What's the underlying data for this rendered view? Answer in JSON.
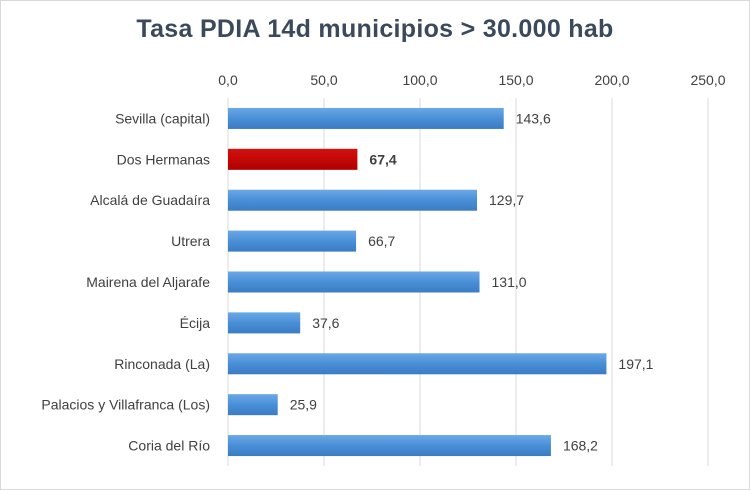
{
  "chart_data": {
    "type": "bar",
    "orientation": "horizontal",
    "title": "Tasa  PDIA  14d municipios  > 30.000 hab",
    "xlabel": "",
    "ylabel": "",
    "xlim": [
      0,
      250
    ],
    "x_tick_values": [
      0,
      50,
      100,
      150,
      200,
      250
    ],
    "x_tick_labels": [
      "0,0",
      "50,0",
      "100,0",
      "150,0",
      "200,0",
      "250,0"
    ],
    "x_axis_position": "top",
    "grid": true,
    "legend": "none",
    "categories": [
      "Sevilla (capital)",
      "Dos Hermanas",
      "Alcalá de Guadaíra",
      "Utrera",
      "Mairena del Aljarafe",
      "Écija",
      "Rinconada (La)",
      "Palacios y Villafranca (Los)",
      "Coria del Río"
    ],
    "values": [
      143.6,
      67.4,
      129.7,
      66.7,
      131.0,
      37.6,
      197.1,
      25.9,
      168.2
    ],
    "value_labels": [
      "143,6",
      "67,4",
      "129,7",
      "66,7",
      "131,0",
      "37,6",
      "197,1",
      "25,9",
      "168,2"
    ],
    "highlight_index": 1,
    "colors": {
      "bar": "#4a8fd6",
      "highlight": "#c00000"
    }
  }
}
